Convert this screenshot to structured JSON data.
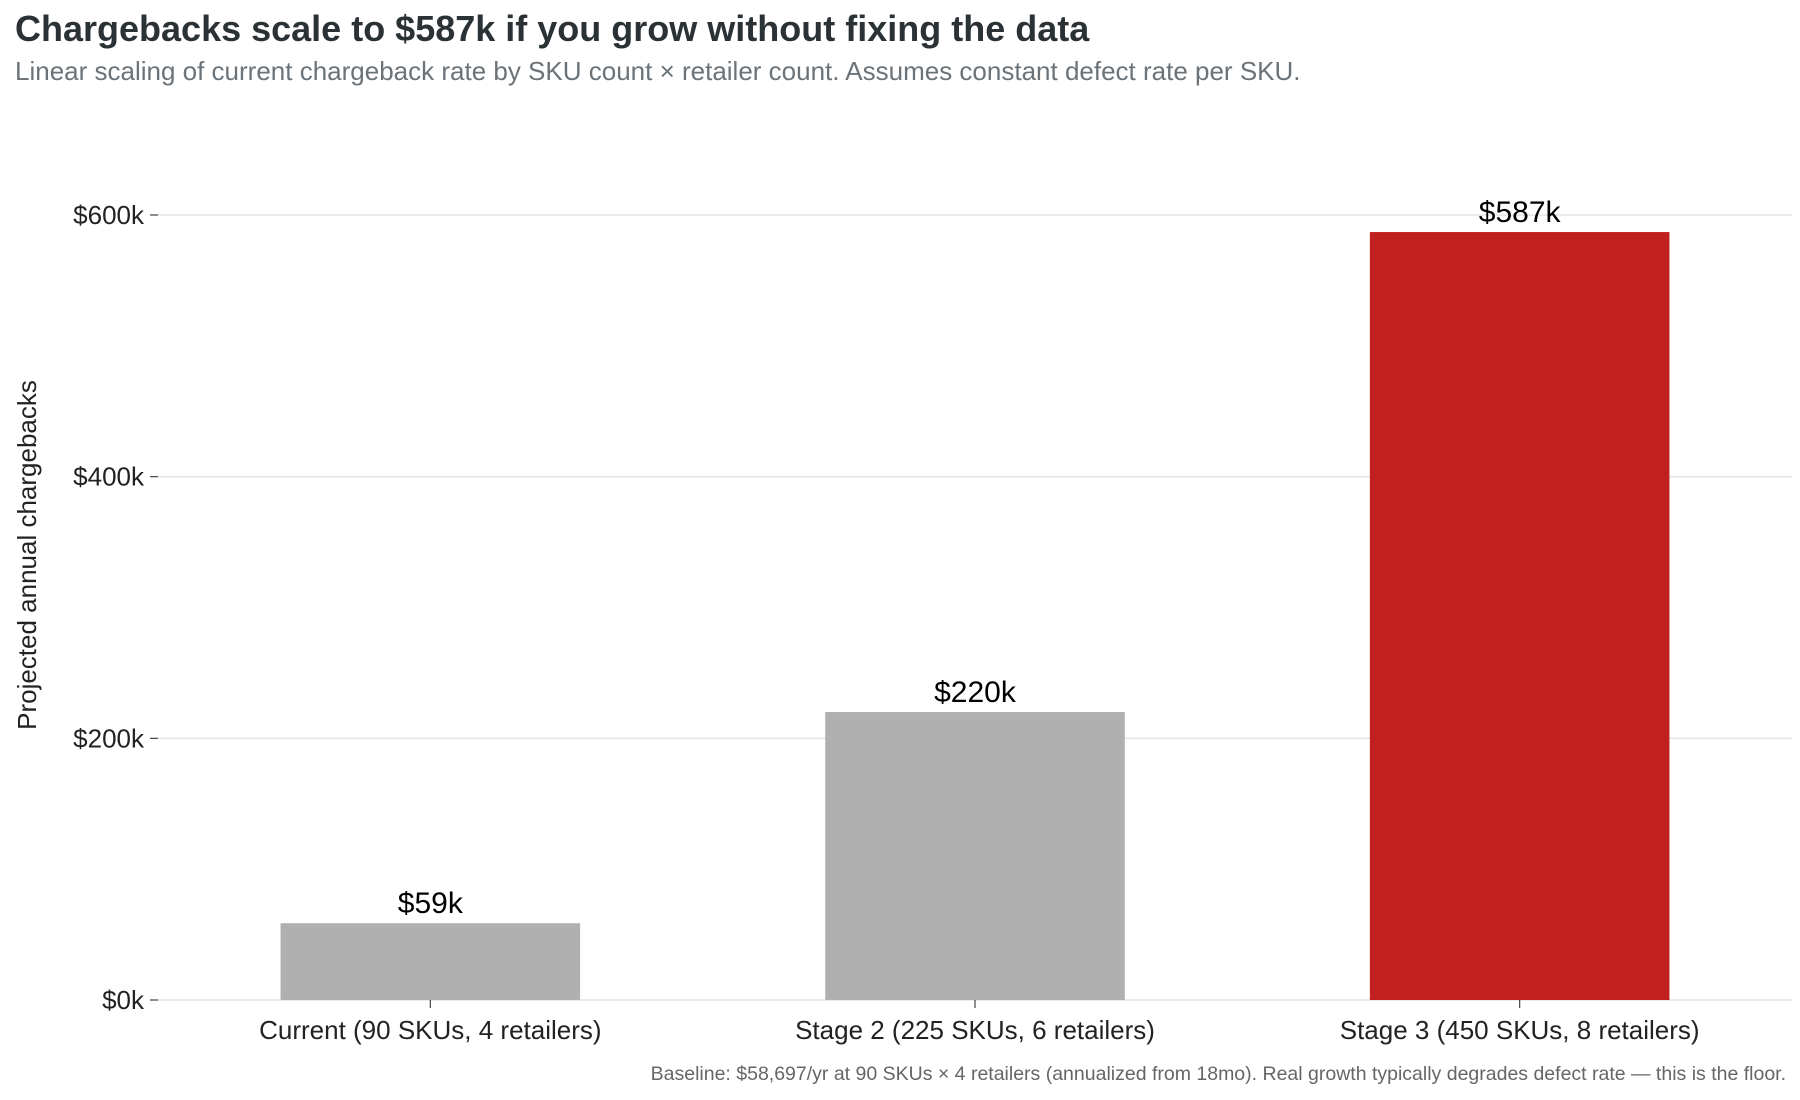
{
  "chart": {
    "title": "Chargebacks scale to $587k if you grow without fixing the data",
    "subtitle": "Linear scaling of current chargeback rate by SKU count × retailer count. Assumes constant defect rate per SKU.",
    "caption": "Baseline: $58,697/yr at 90 SKUs × 4 retailers (annualized from 18mo). Real growth typically degrades defect rate — this is the floor."
  },
  "chart_data": {
    "type": "bar",
    "title": "Chargebacks scale to $587k if you grow without fixing the data",
    "subtitle": "Linear scaling of current chargeback rate by SKU count × retailer count. Assumes constant defect rate per SKU.",
    "xlabel": "",
    "ylabel": "Projected annual chargebacks",
    "categories": [
      "Current (90 SKUs, 4 retailers)",
      "Stage 2 (225 SKUs, 6 retailers)",
      "Stage 3 (450 SKUs, 8 retailers)"
    ],
    "values": [
      58697,
      220114,
      586970
    ],
    "data_labels": [
      "$59k",
      "$220k",
      "$587k"
    ],
    "bar_colors": [
      "#b0b0b0",
      "#b0b0b0",
      "#c0211f"
    ],
    "ylim": [
      0,
      600000
    ],
    "yticks": [
      0,
      200000,
      400000,
      600000
    ],
    "ytick_labels": [
      "$0k",
      "$200k",
      "$400k",
      "$600k"
    ],
    "grid": "horizontal major",
    "legend": "none"
  }
}
